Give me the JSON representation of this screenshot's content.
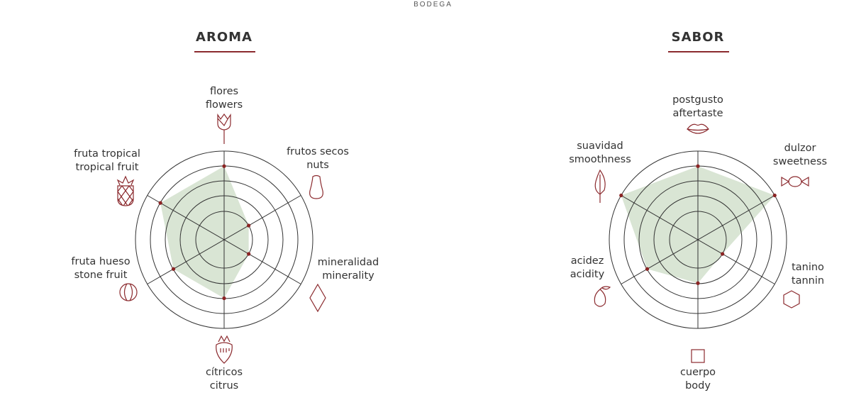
{
  "brand": "BODEGA",
  "colors": {
    "accent": "#8b2a2e",
    "fill": "#d9e5d4",
    "grid": "#333333",
    "point": "#8b2424"
  },
  "chart_data": [
    {
      "type": "radar",
      "title": "AROMA",
      "scale": [
        1,
        5
      ],
      "rings": 5,
      "axes": [
        {
          "es": "flores",
          "en": "flowers",
          "icon": "tulip-icon",
          "value": 4
        },
        {
          "es": "frutos secos",
          "en": "nuts",
          "icon": "nut-icon",
          "value": 1
        },
        {
          "es": "mineralidad",
          "en": "minerality",
          "icon": "diamond-icon",
          "value": 1
        },
        {
          "es": "cítricos",
          "en": "citrus",
          "icon": "strawberry-icon",
          "value": 3
        },
        {
          "es": "fruta hueso",
          "en": "stone fruit",
          "icon": "stone-fruit-icon",
          "value": 3
        },
        {
          "es": "fruta tropical",
          "en": "tropical fruit",
          "icon": "pineapple-icon",
          "value": 4
        }
      ]
    },
    {
      "type": "radar",
      "title": "SABOR",
      "scale": [
        1,
        5
      ],
      "rings": 5,
      "axes": [
        {
          "es": "postgusto",
          "en": "aftertaste",
          "icon": "lips-icon",
          "value": 4
        },
        {
          "es": "dulzor",
          "en": "sweetness",
          "icon": "candy-icon",
          "value": 5
        },
        {
          "es": "tanino",
          "en": "tannin",
          "icon": "hexagon-icon",
          "value": 1
        },
        {
          "es": "cuerpo",
          "en": "body",
          "icon": "square-icon",
          "value": 2
        },
        {
          "es": "acidez",
          "en": "acidity",
          "icon": "lemon-icon",
          "value": 3
        },
        {
          "es": "suavidad",
          "en": "smoothness",
          "icon": "leaf-icon",
          "value": 5
        }
      ]
    }
  ]
}
